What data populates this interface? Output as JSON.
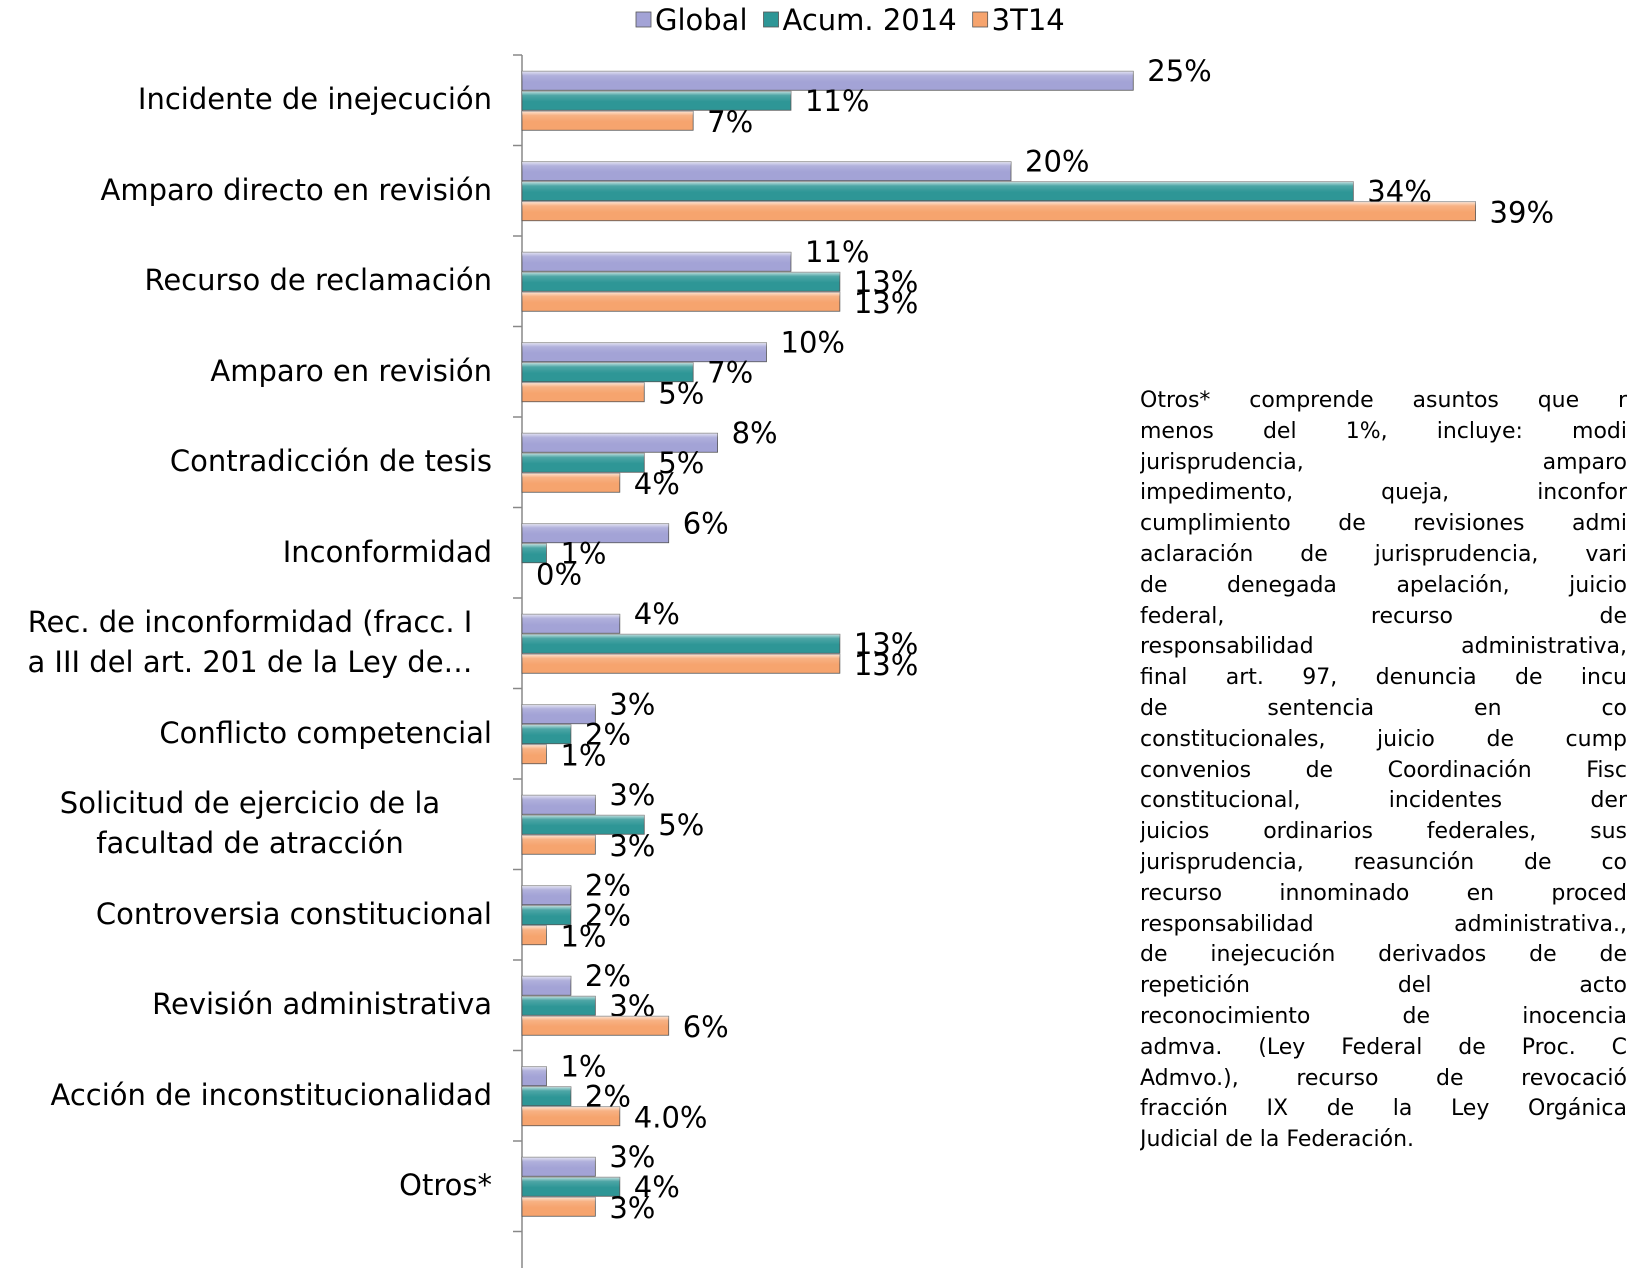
{
  "chart_data": {
    "type": "bar",
    "orientation": "horizontal",
    "categories": [
      "Incidente de inejecución",
      "Amparo directo en revisión",
      "Recurso de reclamación",
      "Amparo en revisión",
      "Contradicción de tesis",
      "Inconformidad",
      "Rec. de inconformidad (fracc. I\na III del art. 201 de la Ley de…",
      "Conflicto competencial",
      "Solicitud de ejercicio de la\nfacultad de atracción",
      "Controversia constitucional",
      "Revisión administrativa",
      "Acción de inconstitucionalidad",
      "Otros*"
    ],
    "series": [
      {
        "name": "Global",
        "color": "#a3a3d6",
        "values": [
          25,
          20,
          11,
          10,
          8,
          6,
          4,
          3,
          3,
          2,
          2,
          1,
          3
        ],
        "value_labels": [
          "25%",
          "20%",
          "11%",
          "10%",
          "8%",
          "6%",
          "4%",
          "3%",
          "3%",
          "2%",
          "2%",
          "1%",
          "3%"
        ]
      },
      {
        "name": "Acum. 2014",
        "color": "#2e9696",
        "values": [
          11,
          34,
          13,
          7,
          5,
          1,
          13,
          2,
          5,
          2,
          3,
          2,
          4
        ],
        "value_labels": [
          "11%",
          "34%",
          "13%",
          "7%",
          "5%",
          "1%",
          "13%",
          "2%",
          "5%",
          "2%",
          "3%",
          "2%",
          "4%"
        ]
      },
      {
        "name": "3T14",
        "color": "#f6a46e",
        "values": [
          7,
          39,
          13,
          5,
          4,
          0,
          13,
          1,
          3,
          1,
          6,
          4.0,
          3
        ],
        "value_labels": [
          "7%",
          "39%",
          "13%",
          "5%",
          "4%",
          "0%",
          "13%",
          "1%",
          "3%",
          "1%",
          "6%",
          "4.0%",
          "3%"
        ]
      }
    ],
    "xlim": [
      0,
      40
    ],
    "legend": "top",
    "annotation_lines": [
      "Otros* comprende asuntos que r",
      "menos del 1%, incluye: modi",
      "jurisprudencia, amparo",
      "impedimento, queja, inconfor",
      "cumplimiento de revisiones admi",
      "aclaración de jurisprudencia, vari",
      "de denegada apelación, juicio",
      "federal, recurso de",
      "responsabilidad administrativa,",
      "final art. 97, denuncia de incu",
      "de sentencia en co",
      "constitucionales, juicio de cump",
      "convenios de Coordinación Fisc",
      "constitucional, incidentes der",
      "juicios ordinarios federales, sus",
      "jurisprudencia, reasunción de co",
      "recurso innominado en proced",
      "responsabilidad administrativa.,",
      "de inejecución derivados de de",
      "repetición del acto",
      "reconocimiento de inocencia",
      "admva. (Ley Federal de Proc. C",
      "Admvo.), recurso de revocació",
      "fracción IX de la Ley Orgánica",
      "Judicial de la Federación."
    ]
  }
}
